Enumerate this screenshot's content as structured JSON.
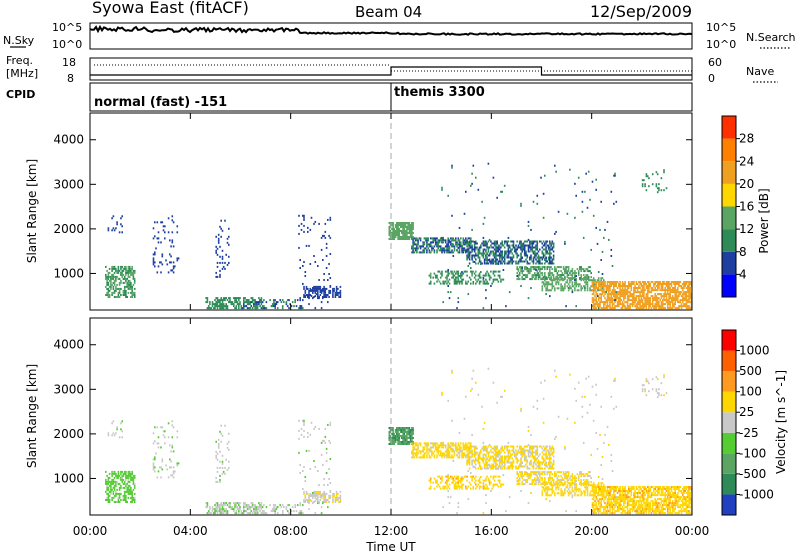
{
  "header": {
    "station": "Syowa East (fitACF)",
    "beam": "Beam 04",
    "date": "12/Sep/2009"
  },
  "summary_panel": {
    "nsky_label": "N.Sky",
    "nsky_tick_top": "10^5",
    "nsky_tick_bottom": "10^0",
    "nsearch_label": "N.Search",
    "nsearch_tick_top": "10^5",
    "nsearch_tick_bottom": "10^0",
    "freq_label_line1": "Freq.",
    "freq_label_line2": "[MHz]",
    "freq_tick_top": "18",
    "freq_tick_bottom": "8",
    "nave_label": "Nave",
    "nave_tick_top": "60",
    "nave_tick_bottom": "0",
    "cpid_label": "CPID",
    "cpid_segments": [
      {
        "name": "normal (fast) -151",
        "start_hour": 0,
        "end_hour": 12
      },
      {
        "name": "themis 3300",
        "start_hour": 12,
        "end_hour": 24
      }
    ]
  },
  "chart_data": [
    {
      "type": "heatmap",
      "title": "Power",
      "xlabel": "Time UT",
      "ylabel": "Slant Range [km]",
      "xlim": [
        0,
        24
      ],
      "ylim": [
        180,
        4600
      ],
      "x_ticks": [
        "00:00",
        "04:00",
        "08:00",
        "12:00",
        "16:00",
        "20:00",
        "00:00"
      ],
      "y_ticks": [
        1000,
        2000,
        3000,
        4000
      ],
      "colorbar": {
        "label": "Power [dB]",
        "range": [
          0,
          32
        ],
        "ticks": [
          "4",
          "8",
          "12",
          "16",
          "20",
          "24",
          "28"
        ],
        "colors": [
          "#0000ff",
          "#1e3fa0",
          "#2e8b57",
          "#5aa564",
          "#ffd700",
          "#f0a020",
          "#ff7f00",
          "#ff3000"
        ]
      },
      "marker_line_hour": 12,
      "regions": [
        {
          "t0": 0.6,
          "t1": 1.8,
          "r0": 450,
          "r1": 1150,
          "value": 12,
          "density": 0.55
        },
        {
          "t0": 0.7,
          "t1": 1.4,
          "r0": 1900,
          "r1": 2300,
          "value": 6,
          "density": 0.15
        },
        {
          "t0": 2.5,
          "t1": 3.5,
          "r0": 1000,
          "r1": 2300,
          "value": 6,
          "density": 0.08
        },
        {
          "t0": 4.6,
          "t1": 6.8,
          "r0": 200,
          "r1": 450,
          "value": 10,
          "density": 0.5
        },
        {
          "t0": 6.0,
          "t1": 8.5,
          "r0": 200,
          "r1": 420,
          "value": 8,
          "density": 0.35
        },
        {
          "t0": 5.0,
          "t1": 5.5,
          "r0": 900,
          "r1": 2200,
          "value": 6,
          "density": 0.12
        },
        {
          "t0": 8.5,
          "t1": 10.0,
          "r0": 450,
          "r1": 700,
          "value": 6,
          "density": 0.6
        },
        {
          "t0": 8.3,
          "t1": 9.6,
          "r0": 200,
          "r1": 2300,
          "value": 6,
          "density": 0.06
        },
        {
          "t0": 11.9,
          "t1": 12.9,
          "r0": 1750,
          "r1": 2150,
          "value": 14,
          "density": 0.8
        },
        {
          "t0": 12.8,
          "t1": 15.2,
          "r0": 1450,
          "r1": 1800,
          "value": 8,
          "density": 0.6
        },
        {
          "t0": 15.0,
          "t1": 18.5,
          "r0": 1200,
          "r1": 1700,
          "value": 8,
          "density": 0.55
        },
        {
          "t0": 13.5,
          "t1": 16.5,
          "r0": 750,
          "r1": 1050,
          "value": 11,
          "density": 0.35
        },
        {
          "t0": 17.0,
          "t1": 20.0,
          "r0": 850,
          "r1": 1150,
          "value": 13,
          "density": 0.55
        },
        {
          "t0": 18.0,
          "t1": 20.5,
          "r0": 600,
          "r1": 900,
          "value": 14,
          "density": 0.5
        },
        {
          "t0": 20.0,
          "t1": 24.0,
          "r0": 200,
          "r1": 800,
          "value": 22,
          "density": 0.7
        },
        {
          "t0": 22.0,
          "t1": 23.0,
          "r0": 2800,
          "r1": 3300,
          "value": 10,
          "density": 0.1
        },
        {
          "t0": 14.0,
          "t1": 21.0,
          "r0": 200,
          "r1": 3500,
          "value": 8,
          "density": 0.015
        }
      ]
    },
    {
      "type": "heatmap",
      "title": "Velocity",
      "xlabel": "Time UT",
      "ylabel": "Slant Range [km]",
      "xlim": [
        0,
        24
      ],
      "ylim": [
        180,
        4600
      ],
      "x_ticks": [
        "00:00",
        "04:00",
        "08:00",
        "12:00",
        "16:00",
        "20:00",
        "00:00"
      ],
      "y_ticks": [
        1000,
        2000,
        3000,
        4000
      ],
      "colorbar": {
        "label": "Velocity [m s^-1]",
        "range": [
          -1200,
          1200
        ],
        "ticks": [
          "1000",
          "500",
          "100",
          "25",
          "-25",
          "-100",
          "-500",
          "-1000"
        ],
        "colors": [
          "#2040c0",
          "#2e8b57",
          "#5aa564",
          "#55cc33",
          "#c8c8c8",
          "#ffd700",
          "#ff9a20",
          "#ff6000",
          "#ff0000"
        ]
      },
      "marker_line_hour": 12,
      "regions": [
        {
          "t0": 0.6,
          "t1": 1.8,
          "r0": 450,
          "r1": 1150,
          "value": -250,
          "density": 0.55
        },
        {
          "t0": 0.7,
          "t1": 1.4,
          "r0": 1900,
          "r1": 2300,
          "value": -60,
          "density": 0.15
        },
        {
          "t0": 2.5,
          "t1": 3.5,
          "r0": 1000,
          "r1": 2300,
          "value": -60,
          "density": 0.08
        },
        {
          "t0": 4.6,
          "t1": 6.8,
          "r0": 200,
          "r1": 450,
          "value": -80,
          "density": 0.5
        },
        {
          "t0": 6.0,
          "t1": 8.5,
          "r0": 200,
          "r1": 420,
          "value": -60,
          "density": 0.35
        },
        {
          "t0": 5.0,
          "t1": 5.5,
          "r0": 900,
          "r1": 2200,
          "value": -60,
          "density": 0.12
        },
        {
          "t0": 8.5,
          "t1": 10.0,
          "r0": 450,
          "r1": 700,
          "value": 60,
          "density": 0.6
        },
        {
          "t0": 8.3,
          "t1": 9.6,
          "r0": 200,
          "r1": 2300,
          "value": -40,
          "density": 0.06
        },
        {
          "t0": 11.9,
          "t1": 12.9,
          "r0": 1750,
          "r1": 2150,
          "value": -600,
          "density": 0.8
        },
        {
          "t0": 12.8,
          "t1": 15.2,
          "r0": 1450,
          "r1": 1800,
          "value": 250,
          "density": 0.6
        },
        {
          "t0": 15.0,
          "t1": 18.5,
          "r0": 1200,
          "r1": 1700,
          "value": 200,
          "density": 0.55
        },
        {
          "t0": 13.5,
          "t1": 16.5,
          "r0": 750,
          "r1": 1050,
          "value": 300,
          "density": 0.35
        },
        {
          "t0": 17.0,
          "t1": 20.0,
          "r0": 850,
          "r1": 1150,
          "value": 200,
          "density": 0.55
        },
        {
          "t0": 18.0,
          "t1": 20.5,
          "r0": 600,
          "r1": 900,
          "value": 250,
          "density": 0.5
        },
        {
          "t0": 20.0,
          "t1": 24.0,
          "r0": 200,
          "r1": 800,
          "value": 300,
          "density": 0.7
        },
        {
          "t0": 22.0,
          "t1": 23.0,
          "r0": 2800,
          "r1": 3300,
          "value": 60,
          "density": 0.1
        },
        {
          "t0": 14.0,
          "t1": 21.0,
          "r0": 200,
          "r1": 3500,
          "value": 60,
          "density": 0.015
        }
      ]
    }
  ]
}
